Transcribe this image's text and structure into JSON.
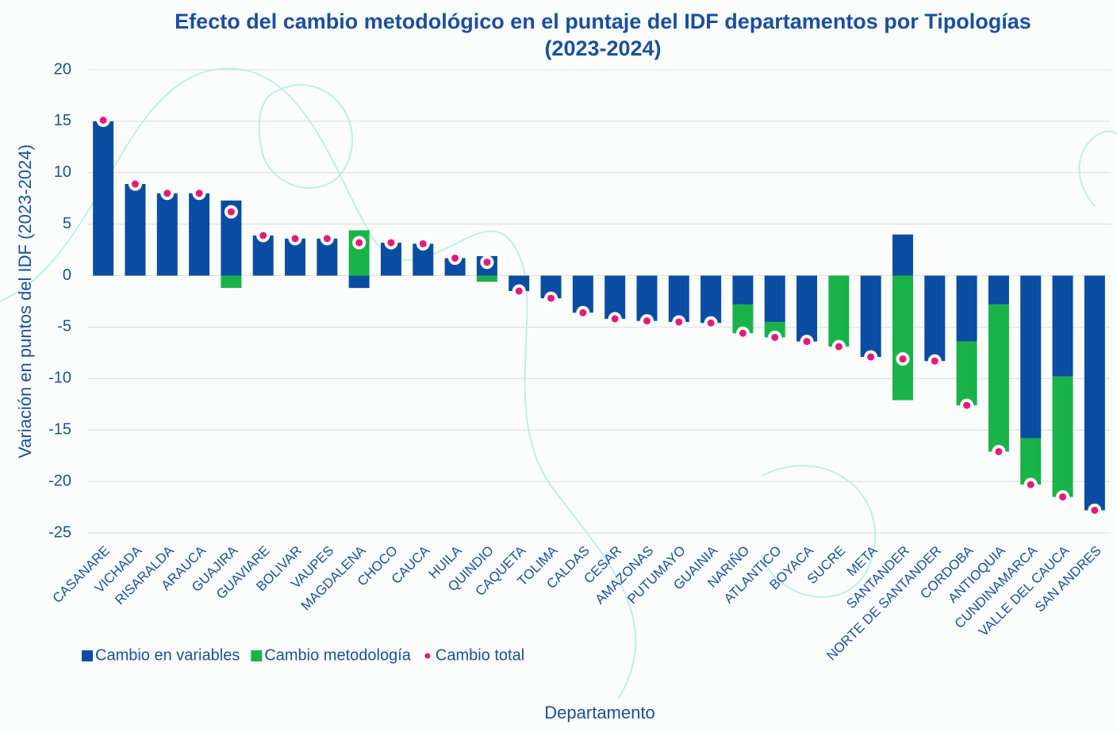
{
  "chart_data": {
    "type": "stacked_bar_with_points",
    "title": "Efecto del cambio metodológico en el puntaje del IDF departamentos por Tipologías (2023-2024)",
    "y_label": "Variación en puntos del IDF (2023-2024)",
    "x_label": "Departamento",
    "categories": [
      "CASANARE",
      "VICHADA",
      "RISARALDA",
      "ARAUCA",
      "GUAJIRA",
      "GUAVIARE",
      "BOLIVAR",
      "VAUPES",
      "MAGDALENA",
      "CHOCO",
      "CAUCA",
      "HUILA",
      "QUINDIO",
      "CAQUETA",
      "TOLIMA",
      "CALDAS",
      "CESAR",
      "AMAZONAS",
      "PUTUMAYO",
      "GUAINIA",
      "NARIÑO",
      "ATLANTICO",
      "BOYACA",
      "SUCRE",
      "META",
      "SANTANDER",
      "NORTE DE SANTANDER",
      "CORDOBA",
      "ANTIOQUIA",
      "CUNDINAMARCA",
      "VALLE DEL CAUCA",
      "SAN ANDRES"
    ],
    "series": [
      {
        "name": "Cambio en variables",
        "color": "#0a4da2",
        "kind": "bar",
        "values": [
          15.0,
          8.9,
          8.0,
          8.0,
          7.3,
          3.9,
          3.6,
          3.6,
          -1.2,
          3.2,
          3.1,
          1.7,
          1.9,
          -1.5,
          -2.2,
          -3.6,
          -4.2,
          -4.4,
          -4.5,
          -4.6,
          -2.8,
          -4.5,
          -6.4,
          0,
          -7.9,
          4.0,
          -8.3,
          -6.4,
          -2.8,
          -15.8,
          -9.8,
          -22.8
        ]
      },
      {
        "name": "Cambio metodología",
        "color": "#19b34a",
        "kind": "bar",
        "values": [
          0,
          0,
          0,
          0,
          -1.2,
          0,
          0,
          0,
          4.4,
          0,
          0,
          0,
          -0.6,
          0,
          0,
          0,
          0,
          0,
          0,
          0,
          -2.8,
          -1.5,
          0,
          -6.9,
          0,
          -12.1,
          0,
          -6.2,
          -14.3,
          -4.5,
          -11.7,
          0
        ]
      },
      {
        "name": "Cambio total",
        "color": "#e6197a",
        "kind": "point",
        "values": [
          15.1,
          8.9,
          8.0,
          8.0,
          6.2,
          3.9,
          3.6,
          3.6,
          3.2,
          3.2,
          3.1,
          1.7,
          1.3,
          -1.5,
          -2.2,
          -3.6,
          -4.2,
          -4.4,
          -4.5,
          -4.6,
          -5.6,
          -6.0,
          -6.4,
          -6.9,
          -7.9,
          -8.1,
          -8.3,
          -12.6,
          -17.1,
          -20.3,
          -21.5,
          -22.8
        ]
      }
    ],
    "ylim": [
      -25,
      20
    ],
    "yticks": [
      -25,
      -20,
      -15,
      -10,
      -5,
      0,
      5,
      10,
      15,
      20
    ],
    "grid": true,
    "legend": "bottom-left"
  }
}
